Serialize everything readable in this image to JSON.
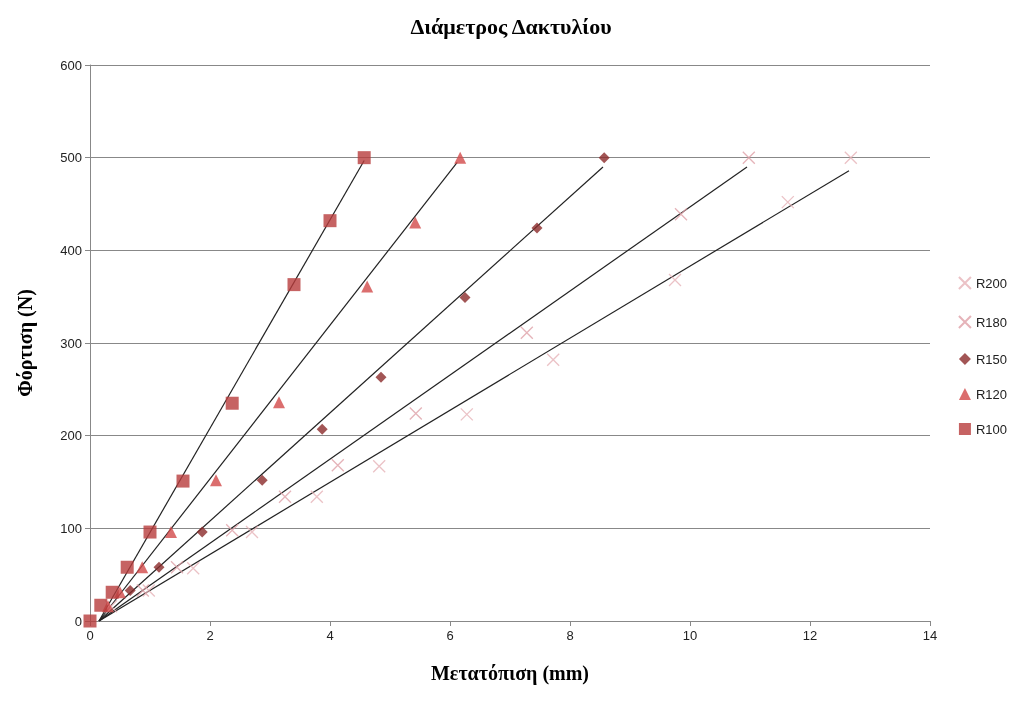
{
  "chart_data": {
    "type": "scatter",
    "title": "Διάμετρος Δακτυλίου",
    "xlabel": "Μετατόπιση (mm)",
    "ylabel": "Φόρτιση (N)",
    "xlim": [
      0,
      14
    ],
    "xticks": [
      0,
      2,
      4,
      6,
      8,
      10,
      12,
      14
    ],
    "ylim": [
      0,
      600
    ],
    "yticks": [
      0,
      100,
      200,
      300,
      400,
      500,
      600
    ],
    "grid": "y",
    "legend": "right",
    "series": [
      {
        "name": "R200",
        "color": "#e6b3b8",
        "marker": "cross",
        "x": [
          0.35,
          0.98,
          1.72,
          2.7,
          3.78,
          4.82,
          6.28,
          7.72,
          9.75,
          11.63,
          12.68
        ],
        "values": [
          16,
          33,
          57,
          96,
          134,
          167,
          223,
          282,
          368,
          452,
          500
        ]
      },
      {
        "name": "R180",
        "color": "#dea0a8",
        "marker": "cross",
        "x": [
          0.88,
          1.45,
          2.37,
          3.25,
          4.13,
          5.43,
          7.28,
          9.85,
          10.98
        ],
        "values": [
          33,
          58,
          98,
          134,
          168,
          224,
          311,
          439,
          500
        ]
      },
      {
        "name": "R150",
        "color": "#8b2a2a",
        "marker": "diamond",
        "x": [
          0.67,
          1.15,
          1.87,
          2.87,
          3.87,
          4.85,
          6.25,
          7.45,
          8.57
        ],
        "values": [
          33,
          58,
          96,
          152,
          207,
          263,
          349,
          424,
          500
        ]
      },
      {
        "name": "R120",
        "color": "#d24a4a",
        "marker": "triangle",
        "x": [
          0.3,
          0.5,
          0.87,
          1.35,
          2.1,
          3.15,
          4.62,
          5.42,
          6.17
        ],
        "values": [
          16,
          31,
          58,
          96,
          152,
          236,
          361,
          430,
          500
        ]
      },
      {
        "name": "R100",
        "color": "#b83c3c",
        "marker": "square",
        "x": [
          0,
          0.18,
          0.37,
          0.62,
          1.0,
          1.55,
          2.37,
          3.4,
          4.0,
          4.57
        ],
        "values": [
          0,
          17,
          31,
          58,
          96,
          151,
          235,
          363,
          432,
          500
        ]
      },
      {
        "type": "line",
        "color": "#222222",
        "marker": "none",
        "x": [
          0.15,
          12.65
        ],
        "values": [
          0,
          486
        ]
      },
      {
        "type": "line",
        "color": "#222222",
        "marker": "none",
        "x": [
          0.15,
          10.95
        ],
        "values": [
          0,
          490
        ]
      },
      {
        "type": "line",
        "color": "#222222",
        "marker": "none",
        "x": [
          0.15,
          8.55
        ],
        "values": [
          0,
          490
        ]
      },
      {
        "type": "line",
        "color": "#222222",
        "marker": "none",
        "x": [
          0.15,
          6.12
        ],
        "values": [
          0,
          495
        ]
      },
      {
        "type": "line",
        "color": "#222222",
        "marker": "none",
        "x": [
          0.15,
          4.57
        ],
        "values": [
          0,
          497
        ]
      }
    ]
  }
}
